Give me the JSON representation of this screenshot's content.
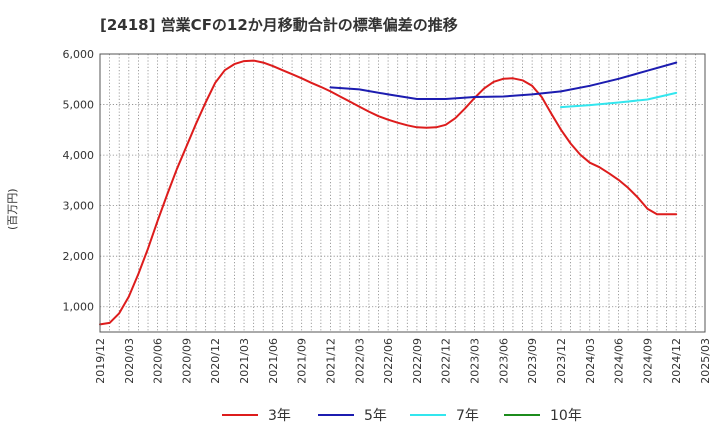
{
  "chart_data": {
    "type": "line",
    "title": "[2418]  営業CFの12か月移動合計の標準偏差の推移",
    "ylabel": "(百万円)",
    "xlabel": "",
    "ylim": [
      500,
      6000
    ],
    "yticks": [
      1000,
      2000,
      3000,
      4000,
      5000,
      6000
    ],
    "ytick_labels": [
      "1,000",
      "2,000",
      "3,000",
      "4,000",
      "5,000",
      "6,000"
    ],
    "xtick_labels": [
      "2019/12",
      "2020/03",
      "2020/06",
      "2020/09",
      "2020/12",
      "2021/03",
      "2021/06",
      "2021/09",
      "2021/12",
      "2022/03",
      "2022/06",
      "2022/09",
      "2022/12",
      "2023/03",
      "2023/06",
      "2023/09",
      "2023/12",
      "2024/03",
      "2024/06",
      "2024/09",
      "2024/12",
      "2025/03"
    ],
    "grid": true,
    "legend_position": "bottom",
    "series": [
      {
        "name": "3年",
        "color": "#dd1c1c",
        "x": [
          "2019/12",
          "2020/01",
          "2020/02",
          "2020/03",
          "2020/04",
          "2020/05",
          "2020/06",
          "2020/07",
          "2020/08",
          "2020/09",
          "2020/10",
          "2020/11",
          "2020/12",
          "2021/01",
          "2021/02",
          "2021/03",
          "2021/04",
          "2021/05",
          "2021/06",
          "2021/07",
          "2021/08",
          "2021/09",
          "2021/10",
          "2021/11",
          "2021/12",
          "2022/01",
          "2022/02",
          "2022/03",
          "2022/04",
          "2022/05",
          "2022/06",
          "2022/07",
          "2022/08",
          "2022/09",
          "2022/10",
          "2022/11",
          "2022/12",
          "2023/01",
          "2023/02",
          "2023/03",
          "2023/04",
          "2023/05",
          "2023/06",
          "2023/07",
          "2023/08",
          "2023/09",
          "2023/10",
          "2023/11",
          "2023/12",
          "2024/01",
          "2024/02",
          "2024/03",
          "2024/04",
          "2024/05",
          "2024/06",
          "2024/07",
          "2024/08",
          "2024/09",
          "2024/10",
          "2024/11",
          "2024/12"
        ],
        "values": [
          650,
          680,
          870,
          1200,
          1650,
          2150,
          2700,
          3220,
          3720,
          4170,
          4620,
          5040,
          5430,
          5680,
          5800,
          5860,
          5870,
          5830,
          5760,
          5680,
          5600,
          5520,
          5430,
          5350,
          5260,
          5160,
          5060,
          4960,
          4860,
          4770,
          4700,
          4640,
          4590,
          4550,
          4540,
          4550,
          4600,
          4730,
          4920,
          5130,
          5320,
          5450,
          5510,
          5520,
          5480,
          5370,
          5150,
          4820,
          4500,
          4230,
          4010,
          3850,
          3760,
          3640,
          3510,
          3350,
          3160,
          2940,
          2830,
          2830,
          2830
        ]
      },
      {
        "name": "5年",
        "color": "#1c1cb0",
        "x": [
          "2021/12",
          "2022/03",
          "2022/06",
          "2022/09",
          "2022/12",
          "2023/03",
          "2023/06",
          "2023/09",
          "2023/12",
          "2024/03",
          "2024/06",
          "2024/09",
          "2024/12"
        ],
        "values": [
          5340,
          5300,
          5200,
          5110,
          5110,
          5150,
          5160,
          5200,
          5260,
          5370,
          5510,
          5670,
          5830
        ]
      },
      {
        "name": "7年",
        "color": "#33e6ee",
        "x": [
          "2023/12",
          "2024/03",
          "2024/06",
          "2024/09",
          "2024/12"
        ],
        "values": [
          4950,
          4990,
          5040,
          5100,
          5230
        ]
      },
      {
        "name": "10年",
        "color": "#1c8c1c",
        "x": [],
        "values": []
      }
    ]
  }
}
